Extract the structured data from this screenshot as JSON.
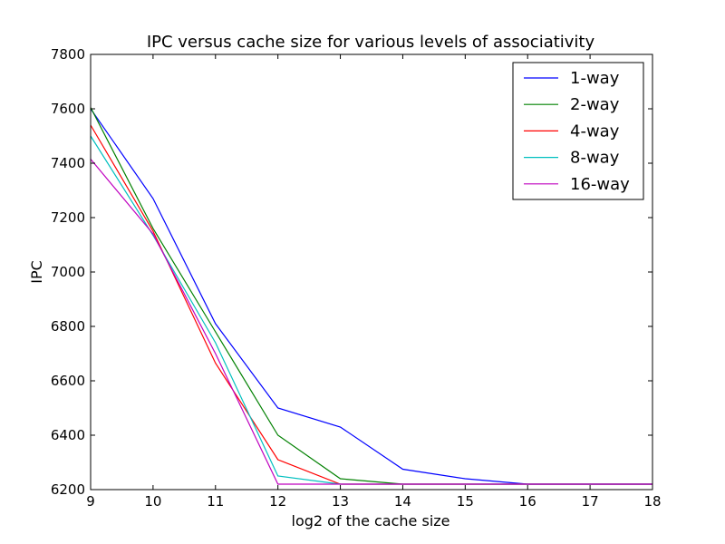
{
  "chart_data": {
    "type": "line",
    "title": "IPC versus cache size for various levels of associativity",
    "xlabel": "log2 of the cache size",
    "ylabel": "IPC",
    "xlim": [
      9,
      18
    ],
    "ylim": [
      6200,
      7800
    ],
    "xticks": [
      9,
      10,
      11,
      12,
      13,
      14,
      15,
      16,
      17,
      18
    ],
    "yticks": [
      6200,
      6400,
      6600,
      6800,
      7000,
      7200,
      7400,
      7600,
      7800
    ],
    "x": [
      9,
      10,
      11,
      12,
      13,
      14,
      15,
      16,
      17,
      18
    ],
    "grid": false,
    "legend_position": "top-right",
    "series": [
      {
        "name": "1-way",
        "color": "#0000ff",
        "values": [
          7600,
          7270,
          6810,
          6500,
          6430,
          6275,
          6240,
          6220,
          6220,
          6220
        ]
      },
      {
        "name": "2-way",
        "color": "#008000",
        "values": [
          7605,
          7160,
          6780,
          6400,
          6240,
          6220,
          6220,
          6220,
          6220,
          6220
        ]
      },
      {
        "name": "4-way",
        "color": "#ff0000",
        "values": [
          7540,
          7150,
          6665,
          6310,
          6220,
          6220,
          6220,
          6220,
          6220,
          6220
        ]
      },
      {
        "name": "8-way",
        "color": "#00bfbf",
        "values": [
          7500,
          7135,
          6740,
          6250,
          6220,
          6220,
          6220,
          6220,
          6220,
          6220
        ]
      },
      {
        "name": "16-way",
        "color": "#bf00bf",
        "values": [
          7415,
          7140,
          6700,
          6220,
          6220,
          6220,
          6220,
          6220,
          6220,
          6220
        ]
      }
    ]
  }
}
